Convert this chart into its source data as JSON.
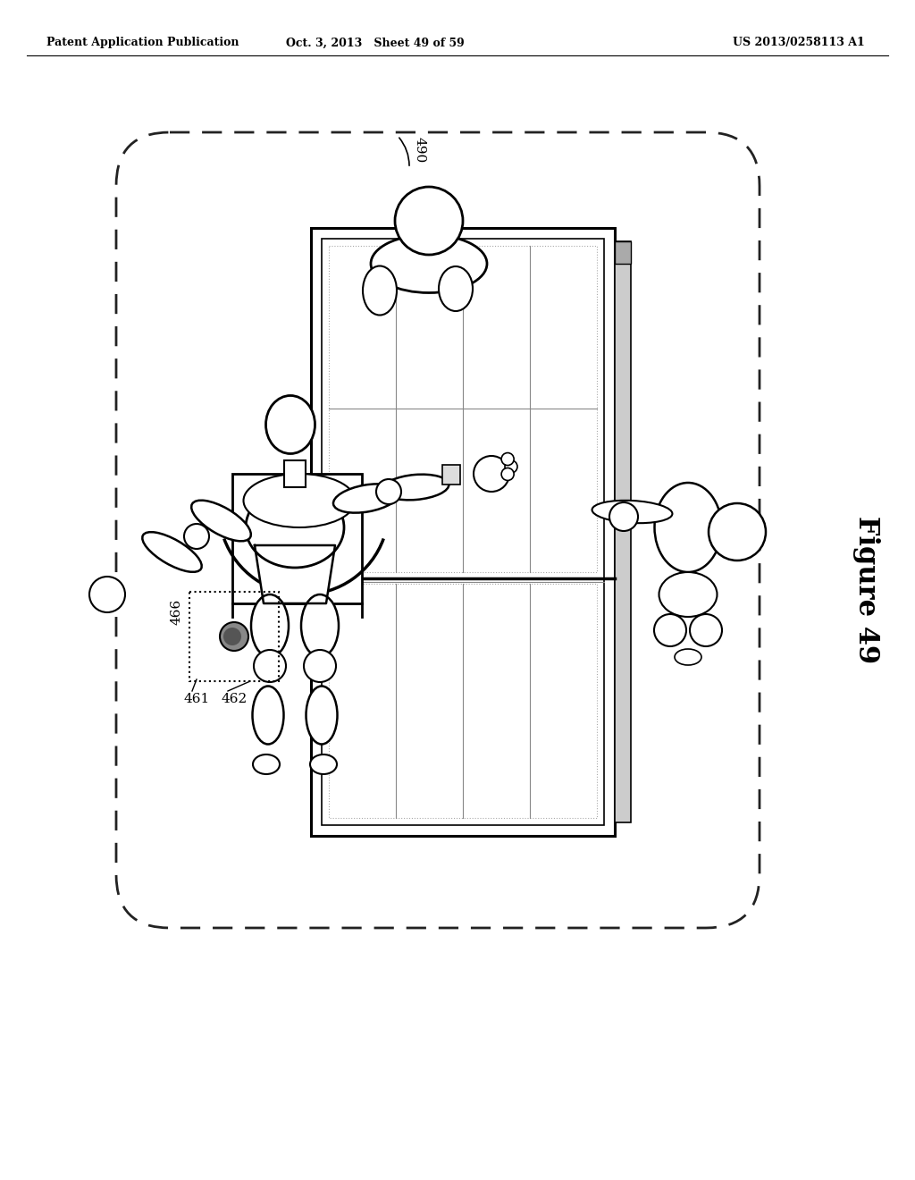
{
  "title_left": "Patent Application Publication",
  "title_center": "Oct. 3, 2013   Sheet 49 of 59",
  "title_right": "US 2013/0258113 A1",
  "figure_label": "Figure 49",
  "label_490": "490",
  "label_461": "461",
  "label_462": "462",
  "label_466": "466",
  "bg_color": "#ffffff",
  "line_color": "#000000",
  "gray_fill": "#f0f0f0",
  "dark_fill": "#d0d0d0"
}
